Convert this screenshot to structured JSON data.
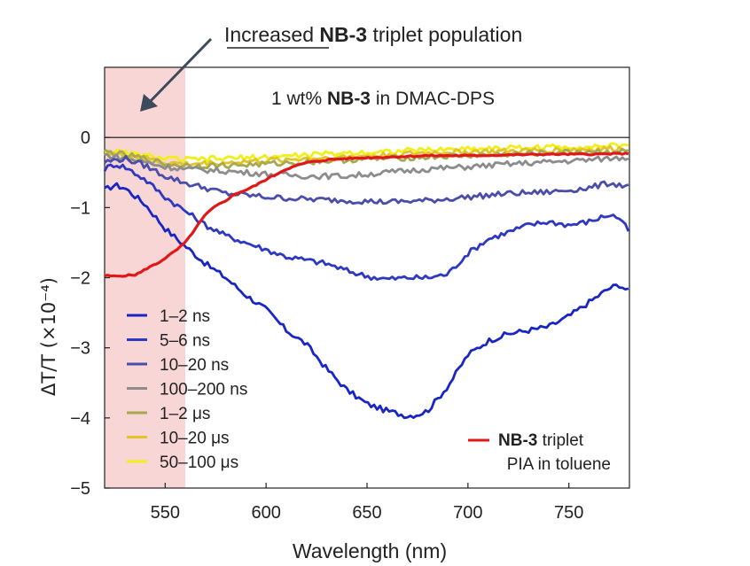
{
  "chart_data": {
    "type": "line",
    "annotation": {
      "prefix": "Increased",
      "bold": "NB-3",
      "suffix": "triplet population"
    },
    "title": {
      "prefix": "1 wt%",
      "bold": "NB-3",
      "suffix": "in DMAC-DPS"
    },
    "xlabel": "Wavelength (nm)",
    "ylabel": "ΔT/T (×10⁻⁴)",
    "xlim": [
      520,
      780
    ],
    "ylim": [
      -5,
      1
    ],
    "xticks": [
      550,
      600,
      650,
      700,
      750
    ],
    "yticks": [
      0,
      -1,
      -2,
      -3,
      -4,
      -5
    ],
    "ytick_labels": [
      "0",
      "−1",
      "−2",
      "−3",
      "−4",
      "−5"
    ],
    "highlight_region": {
      "x_from": 520,
      "x_to": 560,
      "color": "#f9d6d6"
    },
    "series": [
      {
        "name": "1–2 ns",
        "color": "#1a26c4",
        "x": [
          520,
          525,
          530,
          540,
          550,
          560,
          570,
          580,
          590,
          600,
          610,
          620,
          630,
          640,
          650,
          660,
          670,
          675,
          680,
          690,
          700,
          710,
          720,
          730,
          740,
          750,
          760,
          770,
          775,
          780
        ],
        "y": [
          -0.75,
          -0.68,
          -0.72,
          -0.95,
          -1.3,
          -1.55,
          -1.8,
          -2.0,
          -2.25,
          -2.45,
          -2.75,
          -2.95,
          -3.3,
          -3.6,
          -3.8,
          -3.9,
          -3.97,
          -3.95,
          -3.9,
          -3.55,
          -3.1,
          -2.9,
          -2.8,
          -2.75,
          -2.7,
          -2.55,
          -2.35,
          -2.15,
          -2.1,
          -2.2
        ]
      },
      {
        "name": "5–6 ns",
        "color": "#2e38c0",
        "x": [
          520,
          525,
          530,
          540,
          550,
          560,
          570,
          580,
          590,
          600,
          610,
          620,
          630,
          640,
          650,
          660,
          670,
          680,
          690,
          700,
          710,
          720,
          730,
          740,
          750,
          760,
          770,
          775,
          780
        ],
        "y": [
          -0.45,
          -0.38,
          -0.42,
          -0.6,
          -0.85,
          -1.05,
          -1.25,
          -1.4,
          -1.5,
          -1.6,
          -1.7,
          -1.75,
          -1.8,
          -1.9,
          -1.98,
          -2.02,
          -2.0,
          -2.0,
          -1.95,
          -1.65,
          -1.45,
          -1.35,
          -1.25,
          -1.2,
          -1.25,
          -1.2,
          -1.1,
          -1.15,
          -1.35
        ]
      },
      {
        "name": "10–20 ns",
        "color": "#4a4eaa",
        "x": [
          520,
          530,
          540,
          550,
          560,
          570,
          580,
          590,
          600,
          620,
          640,
          660,
          680,
          700,
          720,
          740,
          760,
          770,
          780
        ],
        "y": [
          -0.35,
          -0.3,
          -0.4,
          -0.55,
          -0.65,
          -0.72,
          -0.8,
          -0.82,
          -0.85,
          -0.88,
          -0.9,
          -0.92,
          -0.9,
          -0.85,
          -0.8,
          -0.78,
          -0.72,
          -0.65,
          -0.7
        ]
      },
      {
        "name": "100–200 ns",
        "color": "#8c8c8c",
        "x": [
          520,
          530,
          540,
          550,
          560,
          580,
          600,
          620,
          640,
          660,
          680,
          700,
          720,
          740,
          760,
          770,
          780
        ],
        "y": [
          -0.25,
          -0.3,
          -0.35,
          -0.42,
          -0.45,
          -0.48,
          -0.52,
          -0.55,
          -0.55,
          -0.5,
          -0.45,
          -0.42,
          -0.38,
          -0.35,
          -0.32,
          -0.3,
          -0.28
        ]
      },
      {
        "name": "1–2 μs",
        "color": "#a8a850",
        "x": [
          520,
          530,
          540,
          550,
          560,
          580,
          600,
          620,
          640,
          660,
          680,
          700,
          720,
          740,
          760,
          780
        ],
        "y": [
          -0.2,
          -0.25,
          -0.3,
          -0.38,
          -0.4,
          -0.4,
          -0.38,
          -0.35,
          -0.32,
          -0.3,
          -0.28,
          -0.26,
          -0.24,
          -0.22,
          -0.2,
          -0.2
        ]
      },
      {
        "name": "10–20 μs",
        "color": "#e0c42a",
        "x": [
          520,
          530,
          540,
          550,
          560,
          580,
          600,
          620,
          640,
          660,
          680,
          700,
          720,
          740,
          760,
          780
        ],
        "y": [
          -0.22,
          -0.26,
          -0.3,
          -0.36,
          -0.38,
          -0.36,
          -0.33,
          -0.3,
          -0.28,
          -0.25,
          -0.22,
          -0.2,
          -0.2,
          -0.18,
          -0.17,
          -0.16
        ]
      },
      {
        "name": "50–100 μs",
        "color": "#f2ee1a",
        "x": [
          520,
          530,
          540,
          550,
          560,
          580,
          600,
          620,
          640,
          660,
          680,
          700,
          720,
          740,
          760,
          780
        ],
        "y": [
          -0.2,
          -0.22,
          -0.26,
          -0.3,
          -0.32,
          -0.3,
          -0.28,
          -0.25,
          -0.22,
          -0.2,
          -0.18,
          -0.16,
          -0.15,
          -0.14,
          -0.13,
          -0.12
        ]
      }
    ],
    "reference_series": {
      "name": {
        "bold": "NB-3",
        "suffix": "triplet",
        "line2": "PIA in toluene"
      },
      "color": "#e01818",
      "x": [
        520,
        525,
        530,
        535,
        538,
        542,
        546,
        550,
        555,
        560,
        565,
        570,
        575,
        580,
        585,
        590,
        595,
        600,
        610,
        620,
        630,
        640,
        660,
        680,
        700,
        720,
        740,
        760,
        780
      ],
      "y": [
        -1.97,
        -1.98,
        -1.97,
        -1.96,
        -1.92,
        -1.85,
        -1.8,
        -1.72,
        -1.62,
        -1.5,
        -1.3,
        -1.1,
        -0.98,
        -0.9,
        -0.8,
        -0.75,
        -0.68,
        -0.6,
        -0.45,
        -0.36,
        -0.32,
        -0.3,
        -0.28,
        -0.26,
        -0.26,
        -0.25,
        -0.24,
        -0.24,
        -0.23
      ]
    }
  }
}
